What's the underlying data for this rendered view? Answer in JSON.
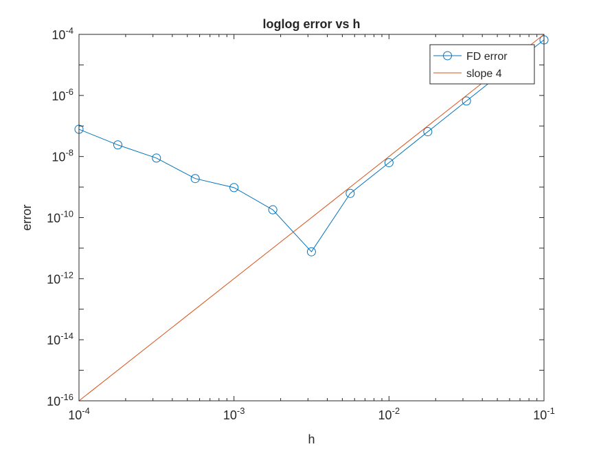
{
  "chart_data": {
    "type": "line",
    "title": "loglog error vs h",
    "xlabel": "h",
    "ylabel": "error",
    "xscale": "log",
    "yscale": "log",
    "xlim": [
      0.0001,
      0.1
    ],
    "ylim": [
      1e-16,
      0.0001
    ],
    "x_ticks": [
      {
        "base": "10",
        "exp": "-4",
        "value": 0.0001
      },
      {
        "base": "10",
        "exp": "-3",
        "value": 0.001
      },
      {
        "base": "10",
        "exp": "-2",
        "value": 0.01
      },
      {
        "base": "10",
        "exp": "-1",
        "value": 0.1
      }
    ],
    "y_ticks": [
      {
        "base": "10",
        "exp": "-16",
        "value": 1e-16
      },
      {
        "base": "10",
        "exp": "-14",
        "value": 1e-14
      },
      {
        "base": "10",
        "exp": "-12",
        "value": 1e-12
      },
      {
        "base": "10",
        "exp": "-10",
        "value": 1e-10
      },
      {
        "base": "10",
        "exp": "-8",
        "value": 1e-08
      },
      {
        "base": "10",
        "exp": "-6",
        "value": 1e-06
      },
      {
        "base": "10",
        "exp": "-4",
        "value": 0.0001
      }
    ],
    "grid": false,
    "legend_position": "top-right",
    "series": [
      {
        "name": "FD error",
        "color": "#0072BD",
        "marker": "circle",
        "x": [
          0.0001,
          0.000178,
          0.000316,
          0.000562,
          0.001,
          0.00178,
          0.00316,
          0.00562,
          0.01,
          0.0178,
          0.0316,
          0.0562,
          0.1
        ],
        "y": [
          7.8e-08,
          2.4e-08,
          8.9e-09,
          1.9e-09,
          9.6e-10,
          1.8e-10,
          7.6e-12,
          6.2e-10,
          6.3e-09,
          6.5e-08,
          6.6e-07,
          6.7e-06,
          6.6e-05
        ]
      },
      {
        "name": "slope 4",
        "color": "#D95319",
        "marker": "none",
        "x": [
          0.0001,
          0.1
        ],
        "y": [
          1e-16,
          0.0001
        ]
      }
    ]
  }
}
